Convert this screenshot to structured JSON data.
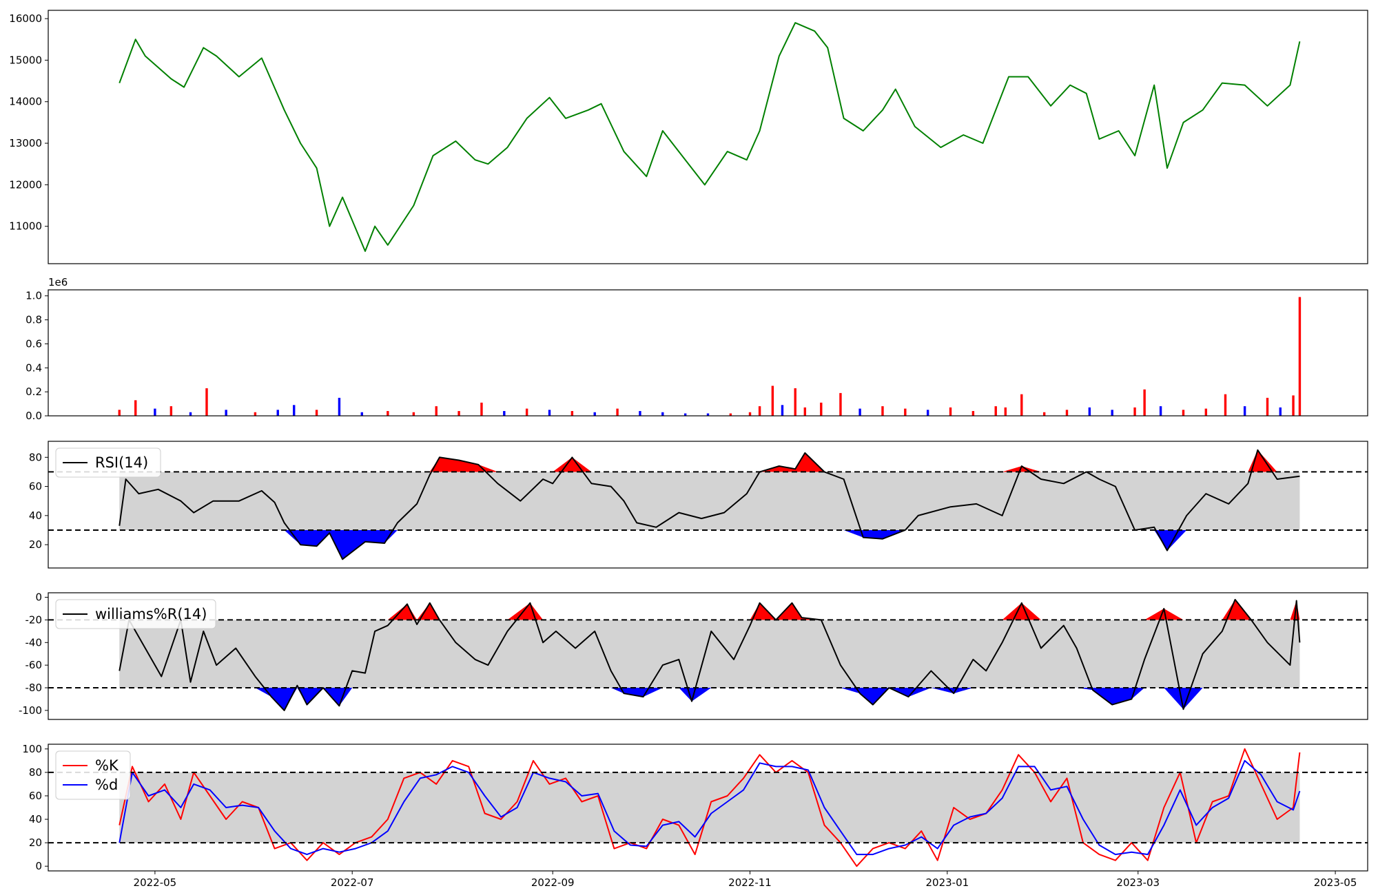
{
  "figure": {
    "x_ticks": [
      "2022-05",
      "2022-07",
      "2022-09",
      "2022-11",
      "2023-01",
      "2023-03",
      "2023-05"
    ]
  },
  "chart_data": [
    {
      "type": "line",
      "panel": "price",
      "ylim": [
        10100,
        16200
      ],
      "yticks": [
        11000,
        12000,
        13000,
        14000,
        15000,
        16000
      ],
      "color": "#008000",
      "x": [
        "2022-04-20",
        "2022-04-25",
        "2022-04-28",
        "2022-05-06",
        "2022-05-10",
        "2022-05-16",
        "2022-05-20",
        "2022-05-27",
        "2022-06-03",
        "2022-06-10",
        "2022-06-15",
        "2022-06-20",
        "2022-06-24",
        "2022-06-28",
        "2022-07-05",
        "2022-07-08",
        "2022-07-12",
        "2022-07-20",
        "2022-07-26",
        "2022-08-02",
        "2022-08-08",
        "2022-08-12",
        "2022-08-18",
        "2022-08-24",
        "2022-08-31",
        "2022-09-05",
        "2022-09-12",
        "2022-09-16",
        "2022-09-23",
        "2022-09-30",
        "2022-10-05",
        "2022-10-13",
        "2022-10-18",
        "2022-10-25",
        "2022-10-31",
        "2022-11-04",
        "2022-11-10",
        "2022-11-15",
        "2022-11-21",
        "2022-11-25",
        "2022-11-30",
        "2022-12-06",
        "2022-12-12",
        "2022-12-16",
        "2022-12-22",
        "2022-12-30",
        "2023-01-06",
        "2023-01-12",
        "2023-01-20",
        "2023-01-26",
        "2023-02-02",
        "2023-02-08",
        "2023-02-13",
        "2023-02-17",
        "2023-02-23",
        "2023-02-28",
        "2023-03-06",
        "2023-03-10",
        "2023-03-15",
        "2023-03-21",
        "2023-03-27",
        "2023-04-03",
        "2023-04-10",
        "2023-04-17",
        "2023-04-20"
      ],
      "values": [
        14450,
        15500,
        15100,
        14550,
        14350,
        15300,
        15100,
        14600,
        15050,
        13800,
        13000,
        12400,
        11000,
        11700,
        10400,
        11000,
        10550,
        11500,
        12700,
        13050,
        12600,
        12500,
        12900,
        13600,
        14100,
        13600,
        13800,
        13950,
        12800,
        12200,
        13300,
        12500,
        12000,
        12800,
        12600,
        13300,
        15100,
        15900,
        15700,
        15300,
        13600,
        13300,
        13800,
        14300,
        13400,
        12900,
        13200,
        13000,
        14600,
        14600,
        13900,
        14400,
        14200,
        13100,
        13300,
        12700,
        14400,
        12400,
        13500,
        13800,
        14450,
        14400,
        13900,
        14400,
        15450
      ]
    },
    {
      "type": "bar",
      "panel": "volume",
      "ylim": [
        0,
        1.05
      ],
      "yticks": [
        0.0,
        0.2,
        0.4,
        0.6,
        0.8,
        1.0
      ],
      "scale_label": "1e6",
      "colors": [
        "#ff0000",
        "#0000ff"
      ],
      "x": [
        "2022-04-20",
        "2022-04-25",
        "2022-05-01",
        "2022-05-06",
        "2022-05-12",
        "2022-05-17",
        "2022-05-23",
        "2022-06-01",
        "2022-06-08",
        "2022-06-13",
        "2022-06-20",
        "2022-06-27",
        "2022-07-04",
        "2022-07-12",
        "2022-07-20",
        "2022-07-27",
        "2022-08-03",
        "2022-08-10",
        "2022-08-17",
        "2022-08-24",
        "2022-08-31",
        "2022-09-07",
        "2022-09-14",
        "2022-09-21",
        "2022-09-28",
        "2022-10-05",
        "2022-10-12",
        "2022-10-19",
        "2022-10-26",
        "2022-11-01",
        "2022-11-04",
        "2022-11-08",
        "2022-11-11",
        "2022-11-15",
        "2022-11-18",
        "2022-11-23",
        "2022-11-29",
        "2022-12-05",
        "2022-12-12",
        "2022-12-19",
        "2022-12-26",
        "2023-01-02",
        "2023-01-09",
        "2023-01-16",
        "2023-01-19",
        "2023-01-24",
        "2023-01-31",
        "2023-02-07",
        "2023-02-14",
        "2023-02-21",
        "2023-02-28",
        "2023-03-03",
        "2023-03-08",
        "2023-03-15",
        "2023-03-22",
        "2023-03-28",
        "2023-04-03",
        "2023-04-10",
        "2023-04-14",
        "2023-04-18",
        "2023-04-20"
      ],
      "values": [
        0.05,
        0.13,
        0.06,
        0.08,
        0.03,
        0.23,
        0.05,
        0.03,
        0.05,
        0.09,
        0.05,
        0.15,
        0.03,
        0.04,
        0.03,
        0.08,
        0.04,
        0.11,
        0.04,
        0.06,
        0.05,
        0.04,
        0.03,
        0.06,
        0.04,
        0.03,
        0.02,
        0.02,
        0.02,
        0.03,
        0.08,
        0.25,
        0.09,
        0.23,
        0.07,
        0.11,
        0.19,
        0.06,
        0.08,
        0.06,
        0.05,
        0.07,
        0.04,
        0.08,
        0.07,
        0.18,
        0.03,
        0.05,
        0.07,
        0.05,
        0.07,
        0.22,
        0.08,
        0.05,
        0.06,
        0.18,
        0.08,
        0.15,
        0.07,
        0.17,
        0.99
      ],
      "up": [
        1,
        1,
        0,
        1,
        0,
        1,
        0,
        1,
        0,
        0,
        1,
        0,
        0,
        1,
        1,
        1,
        1,
        1,
        0,
        1,
        0,
        1,
        0,
        1,
        0,
        0,
        0,
        0,
        1,
        1,
        1,
        1,
        0,
        1,
        1,
        1,
        1,
        0,
        1,
        1,
        0,
        1,
        1,
        1,
        1,
        1,
        1,
        1,
        0,
        0,
        1,
        1,
        0,
        1,
        1,
        1,
        0,
        1,
        0,
        1,
        1
      ]
    },
    {
      "type": "line",
      "panel": "rsi",
      "ylim": [
        4,
        91
      ],
      "yticks": [
        20,
        40,
        60,
        80
      ],
      "hlines": [
        30,
        70
      ],
      "legend": [
        "RSI(14)"
      ],
      "x": [
        "2022-04-20",
        "2022-04-22",
        "2022-04-26",
        "2022-05-02",
        "2022-05-09",
        "2022-05-13",
        "2022-05-19",
        "2022-05-27",
        "2022-06-03",
        "2022-06-07",
        "2022-06-10",
        "2022-06-15",
        "2022-06-20",
        "2022-06-24",
        "2022-06-28",
        "2022-07-05",
        "2022-07-11",
        "2022-07-15",
        "2022-07-21",
        "2022-07-25",
        "2022-07-28",
        "2022-08-03",
        "2022-08-09",
        "2022-08-15",
        "2022-08-22",
        "2022-08-29",
        "2022-09-01",
        "2022-09-07",
        "2022-09-13",
        "2022-09-19",
        "2022-09-23",
        "2022-09-27",
        "2022-10-03",
        "2022-10-10",
        "2022-10-17",
        "2022-10-24",
        "2022-10-31",
        "2022-11-04",
        "2022-11-10",
        "2022-11-15",
        "2022-11-18",
        "2022-11-24",
        "2022-11-30",
        "2022-12-06",
        "2022-12-12",
        "2022-12-19",
        "2022-12-23",
        "2023-01-02",
        "2023-01-10",
        "2023-01-18",
        "2023-01-24",
        "2023-01-30",
        "2023-02-06",
        "2023-02-13",
        "2023-02-17",
        "2023-02-22",
        "2023-02-28",
        "2023-03-06",
        "2023-03-10",
        "2023-03-16",
        "2023-03-22",
        "2023-03-29",
        "2023-04-04",
        "2023-04-07",
        "2023-04-13",
        "2023-04-20"
      ],
      "values": [
        33,
        65,
        55,
        58,
        50,
        42,
        50,
        50,
        57,
        49,
        35,
        20,
        19,
        28,
        10,
        22,
        21,
        35,
        48,
        68,
        80,
        78,
        75,
        62,
        50,
        65,
        62,
        80,
        62,
        60,
        50,
        35,
        32,
        42,
        38,
        42,
        55,
        70,
        74,
        72,
        83,
        70,
        65,
        25,
        24,
        30,
        40,
        46,
        48,
        40,
        74,
        65,
        62,
        70,
        65,
        60,
        30,
        32,
        16,
        40,
        55,
        48,
        62,
        85,
        65,
        67
      ]
    },
    {
      "type": "line",
      "panel": "williams",
      "ylim": [
        -108,
        4
      ],
      "yticks": [
        0,
        -20,
        -40,
        -60,
        -80,
        -100
      ],
      "hlines": [
        -20,
        -80
      ],
      "legend": [
        "williams%R(14)"
      ],
      "x": [
        "2022-04-20",
        "2022-04-23",
        "2022-04-28",
        "2022-05-03",
        "2022-05-09",
        "2022-05-12",
        "2022-05-16",
        "2022-05-20",
        "2022-05-26",
        "2022-06-01",
        "2022-06-06",
        "2022-06-10",
        "2022-06-14",
        "2022-06-17",
        "2022-06-22",
        "2022-06-27",
        "2022-07-01",
        "2022-07-05",
        "2022-07-08",
        "2022-07-12",
        "2022-07-18",
        "2022-07-21",
        "2022-07-25",
        "2022-07-28",
        "2022-08-02",
        "2022-08-08",
        "2022-08-12",
        "2022-08-18",
        "2022-08-25",
        "2022-08-29",
        "2022-09-02",
        "2022-09-08",
        "2022-09-14",
        "2022-09-19",
        "2022-09-23",
        "2022-09-29",
        "2022-10-05",
        "2022-10-10",
        "2022-10-14",
        "2022-10-20",
        "2022-10-27",
        "2022-11-01",
        "2022-11-04",
        "2022-11-09",
        "2022-11-14",
        "2022-11-17",
        "2022-11-23",
        "2022-11-29",
        "2022-12-05",
        "2022-12-09",
        "2022-12-14",
        "2022-12-20",
        "2022-12-27",
        "2023-01-03",
        "2023-01-09",
        "2023-01-13",
        "2023-01-18",
        "2023-01-24",
        "2023-01-30",
        "2023-02-06",
        "2023-02-10",
        "2023-02-15",
        "2023-02-21",
        "2023-02-27",
        "2023-03-03",
        "2023-03-09",
        "2023-03-15",
        "2023-03-21",
        "2023-03-27",
        "2023-03-31",
        "2023-04-05",
        "2023-04-10",
        "2023-04-17",
        "2023-04-19",
        "2023-04-20"
      ],
      "values": [
        -65,
        -20,
        -45,
        -70,
        -20,
        -75,
        -30,
        -60,
        -45,
        -70,
        -88,
        -100,
        -78,
        -95,
        -80,
        -96,
        -65,
        -67,
        -30,
        -25,
        -6,
        -24,
        -5,
        -20,
        -40,
        -55,
        -60,
        -30,
        -5,
        -40,
        -30,
        -45,
        -30,
        -65,
        -85,
        -88,
        -60,
        -55,
        -92,
        -30,
        -55,
        -25,
        -5,
        -20,
        -5,
        -18,
        -20,
        -60,
        -85,
        -95,
        -80,
        -88,
        -65,
        -85,
        -55,
        -65,
        -40,
        -5,
        -45,
        -25,
        -45,
        -82,
        -95,
        -90,
        -55,
        -10,
        -99,
        -50,
        -30,
        -2,
        -20,
        -40,
        -60,
        -3,
        -40
      ]
    },
    {
      "type": "line",
      "panel": "stochastic",
      "ylim": [
        -4,
        104
      ],
      "yticks": [
        0,
        20,
        40,
        60,
        80,
        100
      ],
      "hlines": [
        20,
        80
      ],
      "legend": [
        "%K",
        "%d"
      ],
      "x": [
        "2022-04-20",
        "2022-04-24",
        "2022-04-29",
        "2022-05-04",
        "2022-05-09",
        "2022-05-13",
        "2022-05-18",
        "2022-05-23",
        "2022-05-28",
        "2022-06-02",
        "2022-06-07",
        "2022-06-12",
        "2022-06-17",
        "2022-06-22",
        "2022-06-27",
        "2022-07-02",
        "2022-07-07",
        "2022-07-12",
        "2022-07-17",
        "2022-07-22",
        "2022-07-27",
        "2022-08-01",
        "2022-08-06",
        "2022-08-11",
        "2022-08-16",
        "2022-08-21",
        "2022-08-26",
        "2022-08-31",
        "2022-09-05",
        "2022-09-10",
        "2022-09-15",
        "2022-09-20",
        "2022-09-25",
        "2022-09-30",
        "2022-10-05",
        "2022-10-10",
        "2022-10-15",
        "2022-10-20",
        "2022-10-25",
        "2022-10-30",
        "2022-11-04",
        "2022-11-09",
        "2022-11-14",
        "2022-11-19",
        "2022-11-24",
        "2022-11-29",
        "2022-12-04",
        "2022-12-09",
        "2022-12-14",
        "2022-12-19",
        "2022-12-24",
        "2022-12-29",
        "2023-01-03",
        "2023-01-08",
        "2023-01-13",
        "2023-01-18",
        "2023-01-23",
        "2023-01-28",
        "2023-02-02",
        "2023-02-07",
        "2023-02-12",
        "2023-02-17",
        "2023-02-22",
        "2023-02-27",
        "2023-03-04",
        "2023-03-09",
        "2023-03-14",
        "2023-03-19",
        "2023-03-24",
        "2023-03-29",
        "2023-04-03",
        "2023-04-08",
        "2023-04-13",
        "2023-04-18",
        "2023-04-20"
      ],
      "series": [
        {
          "name": "%K",
          "color": "#ff0000",
          "values": [
            35,
            85,
            55,
            70,
            40,
            80,
            60,
            40,
            55,
            50,
            15,
            20,
            5,
            20,
            10,
            20,
            25,
            40,
            75,
            80,
            70,
            90,
            85,
            45,
            40,
            55,
            90,
            70,
            75,
            55,
            60,
            15,
            20,
            15,
            40,
            35,
            10,
            55,
            60,
            75,
            95,
            80,
            90,
            80,
            35,
            20,
            0,
            15,
            20,
            15,
            30,
            5,
            50,
            40,
            45,
            65,
            95,
            80,
            55,
            75,
            20,
            10,
            5,
            20,
            5,
            50,
            80,
            20,
            55,
            60,
            100,
            70,
            40,
            50,
            97
          ]
        },
        {
          "name": "%d",
          "color": "#0000ff",
          "values": [
            20,
            80,
            60,
            65,
            50,
            70,
            65,
            50,
            52,
            50,
            30,
            15,
            10,
            15,
            12,
            15,
            20,
            30,
            55,
            75,
            78,
            85,
            80,
            60,
            42,
            50,
            80,
            75,
            72,
            60,
            62,
            30,
            18,
            17,
            35,
            38,
            25,
            45,
            55,
            65,
            88,
            85,
            85,
            82,
            50,
            30,
            10,
            10,
            15,
            18,
            25,
            15,
            35,
            42,
            45,
            58,
            85,
            85,
            65,
            68,
            40,
            18,
            10,
            12,
            10,
            35,
            65,
            35,
            50,
            58,
            90,
            78,
            55,
            48,
            64
          ]
        }
      ]
    }
  ]
}
